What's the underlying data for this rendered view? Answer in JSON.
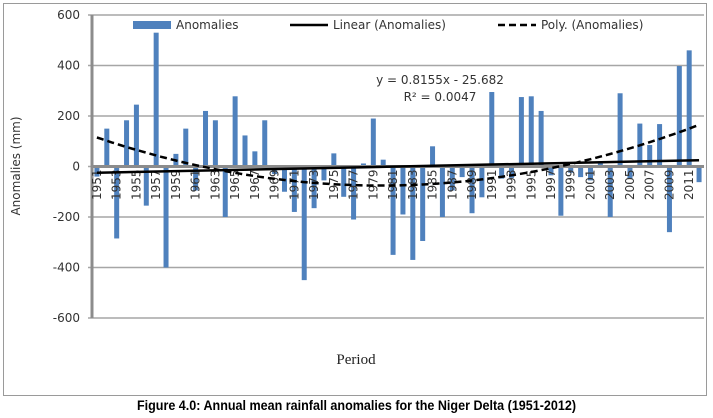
{
  "chart_data": {
    "type": "bar",
    "title": "",
    "xlabel": "Period",
    "ylabel": "Anomalies (mm)",
    "ylim": [
      -600,
      600
    ],
    "yticks": [
      600,
      400,
      200,
      0,
      -200,
      -400,
      -600
    ],
    "grid": true,
    "legend": {
      "placement": "top",
      "entries": [
        "Anomalies",
        "Linear (Anomalies)",
        "Poly. (Anomalies)"
      ]
    },
    "categories": [
      1951,
      1952,
      1953,
      1954,
      1955,
      1956,
      1957,
      1958,
      1959,
      1960,
      1961,
      1962,
      1963,
      1964,
      1965,
      1966,
      1967,
      1968,
      1969,
      1970,
      1971,
      1972,
      1973,
      1974,
      1975,
      1976,
      1977,
      1978,
      1979,
      1980,
      1981,
      1982,
      1983,
      1984,
      1985,
      1986,
      1987,
      1988,
      1989,
      1990,
      1991,
      1992,
      1993,
      1994,
      1995,
      1996,
      1997,
      1998,
      1999,
      2000,
      2001,
      2002,
      2003,
      2004,
      2005,
      2006,
      2007,
      2008,
      2009,
      2010,
      2011,
      2012
    ],
    "tick_labels": [
      "1951",
      "1953",
      "1955",
      "1957",
      "1959",
      "1961",
      "1963",
      "1965",
      "1967",
      "1969",
      "1971",
      "1973",
      "1975",
      "1977",
      "1979",
      "1981",
      "1983",
      "1985",
      "1987",
      "1989",
      "1991",
      "1993",
      "1995",
      "1997",
      "1999",
      "2001",
      "2003",
      "2005",
      "2007",
      "2009",
      "2011"
    ],
    "series": [
      {
        "name": "Anomalies",
        "color": "#4f81bd",
        "values": [
          -40,
          150,
          -285,
          183,
          245,
          -155,
          530,
          -400,
          50,
          150,
          -95,
          220,
          183,
          -200,
          278,
          123,
          60,
          183,
          -30,
          -100,
          -180,
          -450,
          -165,
          -55,
          52,
          -120,
          -210,
          12,
          190,
          27,
          -350,
          -190,
          -370,
          -295,
          80,
          -200,
          -95,
          -42,
          -185,
          -122,
          295,
          -48,
          -45,
          275,
          278,
          220,
          -35,
          -195,
          -25,
          -42,
          -55,
          18,
          -200,
          290,
          -48,
          170,
          85,
          168,
          -260,
          398,
          460,
          -62
        ]
      }
    ],
    "trendlines": [
      {
        "name": "Linear (Anomalies)",
        "kind": "linear",
        "style": "solid",
        "color": "#000000",
        "slope": 0.8155,
        "intercept": -25.682,
        "equation": "y = 0.8155x - 25.682",
        "r2": "R² = 0.0047"
      },
      {
        "name": "Poly. (Anomalies)",
        "kind": "polynomial",
        "style": "dashed",
        "color": "#000000",
        "coefficients": [
          0.2307,
          -13.717,
          128.49
        ]
      }
    ]
  },
  "caption": "Figure 4.0: Annual mean rainfall anomalies for the Niger Delta (1951-2012)"
}
